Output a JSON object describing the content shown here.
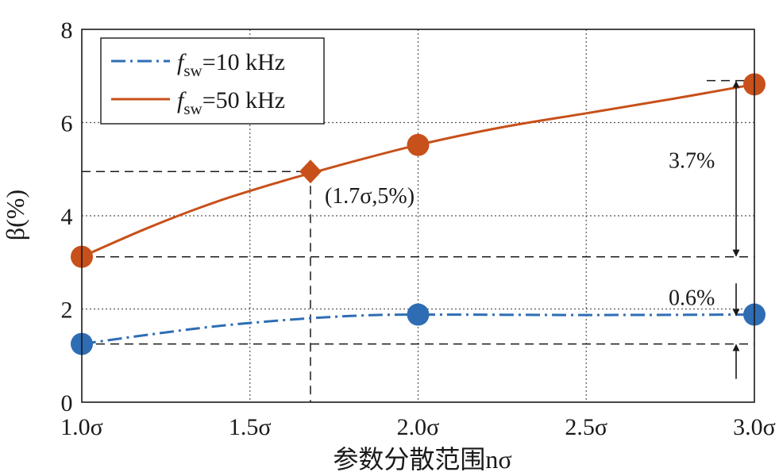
{
  "chart_data": {
    "type": "line",
    "x_ticks": [
      1.0,
      1.5,
      2.0,
      2.5,
      3.0
    ],
    "x_tick_labels": [
      "1.0σ",
      "1.5σ",
      "2.0σ",
      "2.5σ",
      "3.0σ"
    ],
    "y_ticks": [
      0,
      2,
      4,
      6,
      8
    ],
    "y_tick_labels": [
      "0",
      "2",
      "4",
      "6",
      "8"
    ],
    "xlim": [
      1.0,
      3.0
    ],
    "ylim": [
      0,
      8
    ],
    "xlabel": "参数分散范围nσ",
    "ylabel": "β(%)",
    "grid": true,
    "legend_position": "top-left",
    "series": [
      {
        "name": "fsw=10 kHz",
        "name_main": "f",
        "name_sub": "sw",
        "name_rest": "=10 kHz",
        "color": "#2e6db4",
        "style": "dash-dot",
        "curve": [
          [
            1.0,
            1.25
          ],
          [
            1.2,
            1.45
          ],
          [
            1.4,
            1.63
          ],
          [
            1.6,
            1.76
          ],
          [
            1.8,
            1.85
          ],
          [
            2.0,
            1.88
          ],
          [
            2.5,
            1.87
          ],
          [
            3.0,
            1.88
          ]
        ],
        "markers": [
          [
            1.0,
            1.25
          ],
          [
            2.0,
            1.88
          ],
          [
            3.0,
            1.88
          ]
        ]
      },
      {
        "name": "fsw=50 kHz",
        "name_main": "f",
        "name_sub": "sw",
        "name_rest": "=50 kHz",
        "color": "#c8501a",
        "style": "solid",
        "curve": [
          [
            1.0,
            3.12
          ],
          [
            1.2,
            3.75
          ],
          [
            1.4,
            4.3
          ],
          [
            1.6,
            4.75
          ],
          [
            1.7,
            4.95
          ],
          [
            1.8,
            5.15
          ],
          [
            2.0,
            5.52
          ],
          [
            2.25,
            5.9
          ],
          [
            2.5,
            6.2
          ],
          [
            2.75,
            6.5
          ],
          [
            3.0,
            6.82
          ]
        ],
        "markers": [
          [
            1.0,
            3.12
          ],
          [
            2.0,
            5.52
          ],
          [
            3.0,
            6.82
          ]
        ]
      }
    ],
    "highlight_point": {
      "x": 1.68,
      "y": 4.95,
      "label": "(1.7σ,5%)",
      "color": "#c8501a"
    },
    "reference_lines_y": [
      4.95,
      6.9,
      3.12,
      1.25
    ],
    "annotations": [
      {
        "label": "3.7%",
        "y_from": 3.12,
        "y_to": 6.9
      },
      {
        "label": "0.6%",
        "y_from": 1.25,
        "y_to": 1.88
      }
    ]
  }
}
